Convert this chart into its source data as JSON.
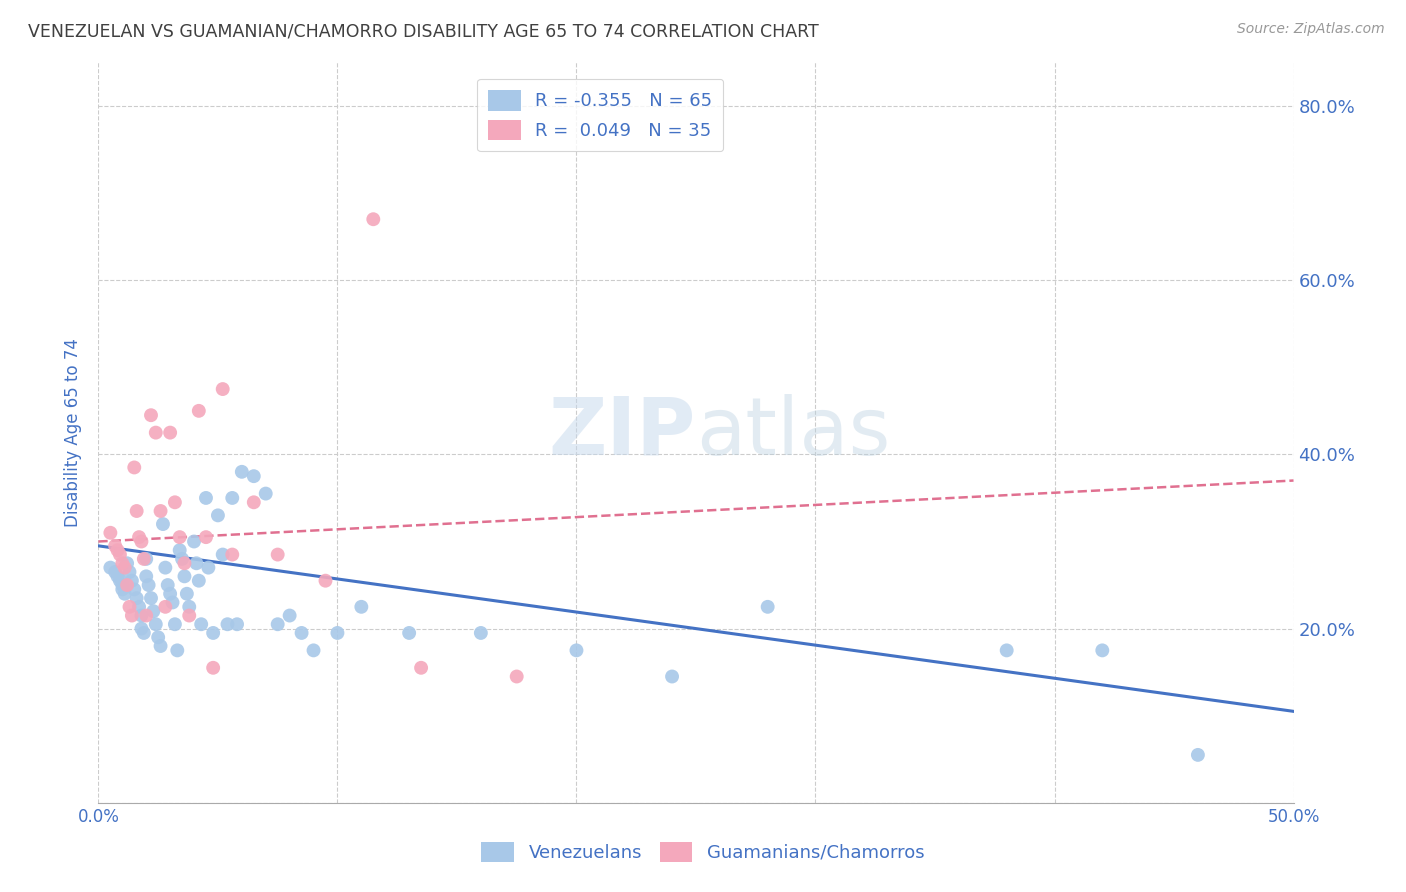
{
  "title": "VENEZUELAN VS GUAMANIAN/CHAMORRO DISABILITY AGE 65 TO 74 CORRELATION CHART",
  "source": "Source: ZipAtlas.com",
  "ylabel": "Disability Age 65 to 74",
  "watermark": "ZIPatlas",
  "legend_blue": {
    "R": "-0.355",
    "N": "65",
    "label": "Venezuelans"
  },
  "legend_pink": {
    "R": "0.049",
    "N": "35",
    "label": "Guamanians/Chamorros"
  },
  "blue_color": "#a8c8e8",
  "pink_color": "#f4a8bc",
  "blue_line_color": "#4472c4",
  "pink_line_color": "#e07090",
  "title_color": "#404040",
  "tick_label_color": "#4472c4",
  "grid_color": "#cccccc",
  "background_color": "#ffffff",
  "xlim": [
    0.0,
    0.5
  ],
  "ylim": [
    0.0,
    0.85
  ],
  "xticks_shown": [
    0.0,
    0.5
  ],
  "xtick_labels_shown": [
    "0.0%",
    "50.0%"
  ],
  "xticks_grid": [
    0.0,
    0.1,
    0.2,
    0.3,
    0.4,
    0.5
  ],
  "yticks": [
    0.2,
    0.4,
    0.6,
    0.8
  ],
  "ytick_labels": [
    "20.0%",
    "40.0%",
    "60.0%",
    "80.0%"
  ],
  "blue_x": [
    0.005,
    0.007,
    0.008,
    0.009,
    0.01,
    0.01,
    0.011,
    0.012,
    0.013,
    0.014,
    0.015,
    0.016,
    0.017,
    0.018,
    0.018,
    0.019,
    0.02,
    0.02,
    0.021,
    0.022,
    0.023,
    0.024,
    0.025,
    0.026,
    0.027,
    0.028,
    0.029,
    0.03,
    0.031,
    0.032,
    0.033,
    0.034,
    0.035,
    0.036,
    0.037,
    0.038,
    0.04,
    0.041,
    0.042,
    0.043,
    0.045,
    0.046,
    0.048,
    0.05,
    0.052,
    0.054,
    0.056,
    0.058,
    0.06,
    0.065,
    0.07,
    0.075,
    0.08,
    0.085,
    0.09,
    0.1,
    0.11,
    0.13,
    0.16,
    0.2,
    0.24,
    0.28,
    0.38,
    0.42,
    0.46
  ],
  "blue_y": [
    0.27,
    0.265,
    0.26,
    0.255,
    0.25,
    0.245,
    0.24,
    0.275,
    0.265,
    0.255,
    0.245,
    0.235,
    0.225,
    0.215,
    0.2,
    0.195,
    0.28,
    0.26,
    0.25,
    0.235,
    0.22,
    0.205,
    0.19,
    0.18,
    0.32,
    0.27,
    0.25,
    0.24,
    0.23,
    0.205,
    0.175,
    0.29,
    0.28,
    0.26,
    0.24,
    0.225,
    0.3,
    0.275,
    0.255,
    0.205,
    0.35,
    0.27,
    0.195,
    0.33,
    0.285,
    0.205,
    0.35,
    0.205,
    0.38,
    0.375,
    0.355,
    0.205,
    0.215,
    0.195,
    0.175,
    0.195,
    0.225,
    0.195,
    0.195,
    0.175,
    0.145,
    0.225,
    0.175,
    0.175,
    0.055
  ],
  "pink_x": [
    0.005,
    0.007,
    0.008,
    0.009,
    0.01,
    0.011,
    0.012,
    0.013,
    0.014,
    0.015,
    0.016,
    0.017,
    0.018,
    0.019,
    0.02,
    0.022,
    0.024,
    0.026,
    0.028,
    0.03,
    0.032,
    0.034,
    0.036,
    0.038,
    0.042,
    0.045,
    0.048,
    0.052,
    0.056,
    0.065,
    0.075,
    0.095,
    0.115,
    0.135,
    0.175
  ],
  "pink_y": [
    0.31,
    0.295,
    0.29,
    0.285,
    0.275,
    0.27,
    0.25,
    0.225,
    0.215,
    0.385,
    0.335,
    0.305,
    0.3,
    0.28,
    0.215,
    0.445,
    0.425,
    0.335,
    0.225,
    0.425,
    0.345,
    0.305,
    0.275,
    0.215,
    0.45,
    0.305,
    0.155,
    0.475,
    0.285,
    0.345,
    0.285,
    0.255,
    0.67,
    0.155,
    0.145
  ],
  "blue_trend_x": [
    0.0,
    0.5
  ],
  "blue_trend_y": [
    0.295,
    0.105
  ],
  "pink_trend_x": [
    0.0,
    0.5
  ],
  "pink_trend_y": [
    0.3,
    0.37
  ]
}
